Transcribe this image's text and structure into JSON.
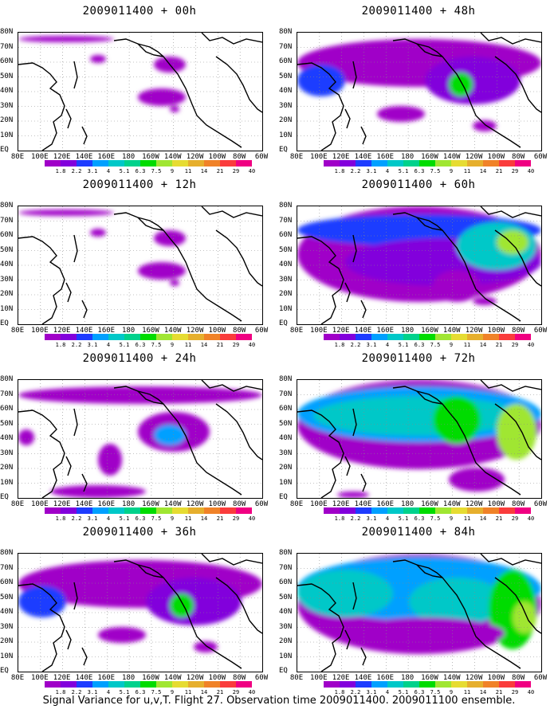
{
  "panels": [
    {
      "title": "2009011400 + 00h",
      "level": 0
    },
    {
      "title": "2009011400 + 48h",
      "level": 2
    },
    {
      "title": "2009011400 + 12h",
      "level": 0
    },
    {
      "title": "2009011400 + 60h",
      "level": 3
    },
    {
      "title": "2009011400 + 24h",
      "level": 1
    },
    {
      "title": "2009011400 + 72h",
      "level": 4
    },
    {
      "title": "2009011400 + 36h",
      "level": 2
    },
    {
      "title": "2009011400 + 84h",
      "level": 5
    }
  ],
  "lat_labels": [
    "80N",
    "70N",
    "60N",
    "50N",
    "40N",
    "30N",
    "20N",
    "10N",
    "EQ"
  ],
  "lon_labels": [
    "80E",
    "100E",
    "120E",
    "140E",
    "160E",
    "180",
    "160W",
    "140W",
    "120W",
    "100W",
    "80W",
    "60W"
  ],
  "colorbar": {
    "labels": [
      "1.8",
      "2.2",
      "3.1",
      "4",
      "5.1",
      "6.3",
      "7.5",
      "9",
      "11",
      "14",
      "21",
      "29",
      "40"
    ],
    "colors": [
      "#a000c8",
      "#8200dc",
      "#1e3cff",
      "#00a0ff",
      "#00c8c8",
      "#00d28c",
      "#00dc00",
      "#a0e632",
      "#e6dc32",
      "#e6af2d",
      "#f08228",
      "#fa3c3c",
      "#f00082"
    ]
  },
  "caption": "Signal Variance for u,v,T. Flight 27. Observation time 2009011400. 2009011100 ensemble."
}
